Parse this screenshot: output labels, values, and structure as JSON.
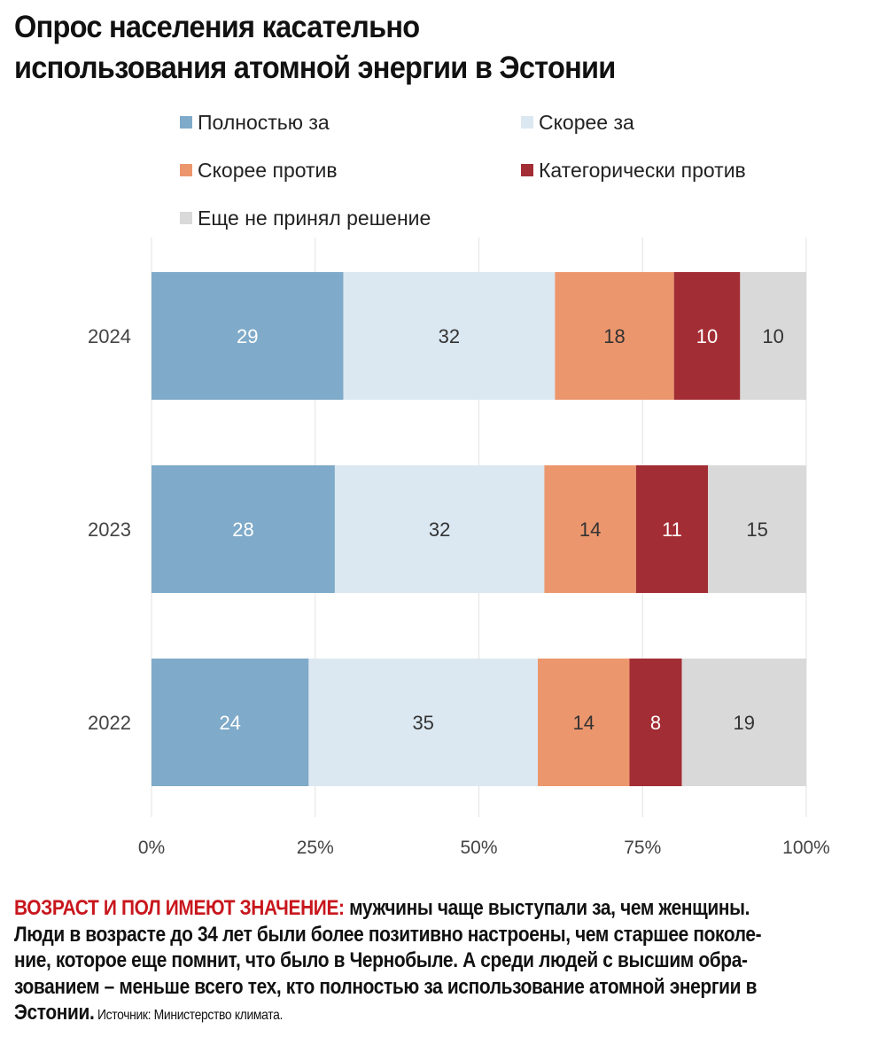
{
  "title": [
    "Опрос населения касательно",
    "использования атомной энергии в Эстонии"
  ],
  "chart_data": {
    "type": "bar",
    "orientation": "horizontal-stacked-100",
    "categories": [
      "2024",
      "2023",
      "2022"
    ],
    "series": [
      {
        "name": "Полностью за",
        "color": "#7faac9",
        "label_color": "#ffffff",
        "values": [
          29,
          28,
          24
        ]
      },
      {
        "name": "Скорее за",
        "color": "#dbe8f1",
        "label_color": "#333333",
        "values": [
          32,
          32,
          35
        ]
      },
      {
        "name": "Скорее против",
        "color": "#ec966d",
        "label_color": "#333333",
        "values": [
          18,
          14,
          14
        ]
      },
      {
        "name": "Категорически против",
        "color": "#a32d34",
        "label_color": "#ffffff",
        "values": [
          10,
          11,
          8
        ]
      },
      {
        "name": "Еще не принял решение",
        "color": "#d9d9d9",
        "label_color": "#333333",
        "values": [
          10,
          15,
          19
        ]
      }
    ],
    "xticks": [
      "0%",
      "25%",
      "50%",
      "75%",
      "100%"
    ],
    "xlim": [
      0,
      100
    ],
    "grid": true,
    "legend": "top"
  },
  "footer": {
    "highlight": "ВОЗРАСТ И ПОЛ ИМЕЮТ ЗНАЧЕНИЕ:",
    "lines": [
      " мужчины чаще выступали за, чем женщины.",
      "Люди в возрасте до 34 лет были более позитивно настроены, чем старшее поколе-",
      "ние, которое еще помнит, что было в Чернобыле. А среди людей с высшим обра-",
      "зованием – меньше всего тех, кто полностью за использование атомной энергии в",
      "Эстонии."
    ],
    "source": " Источник: Министерство климата."
  }
}
